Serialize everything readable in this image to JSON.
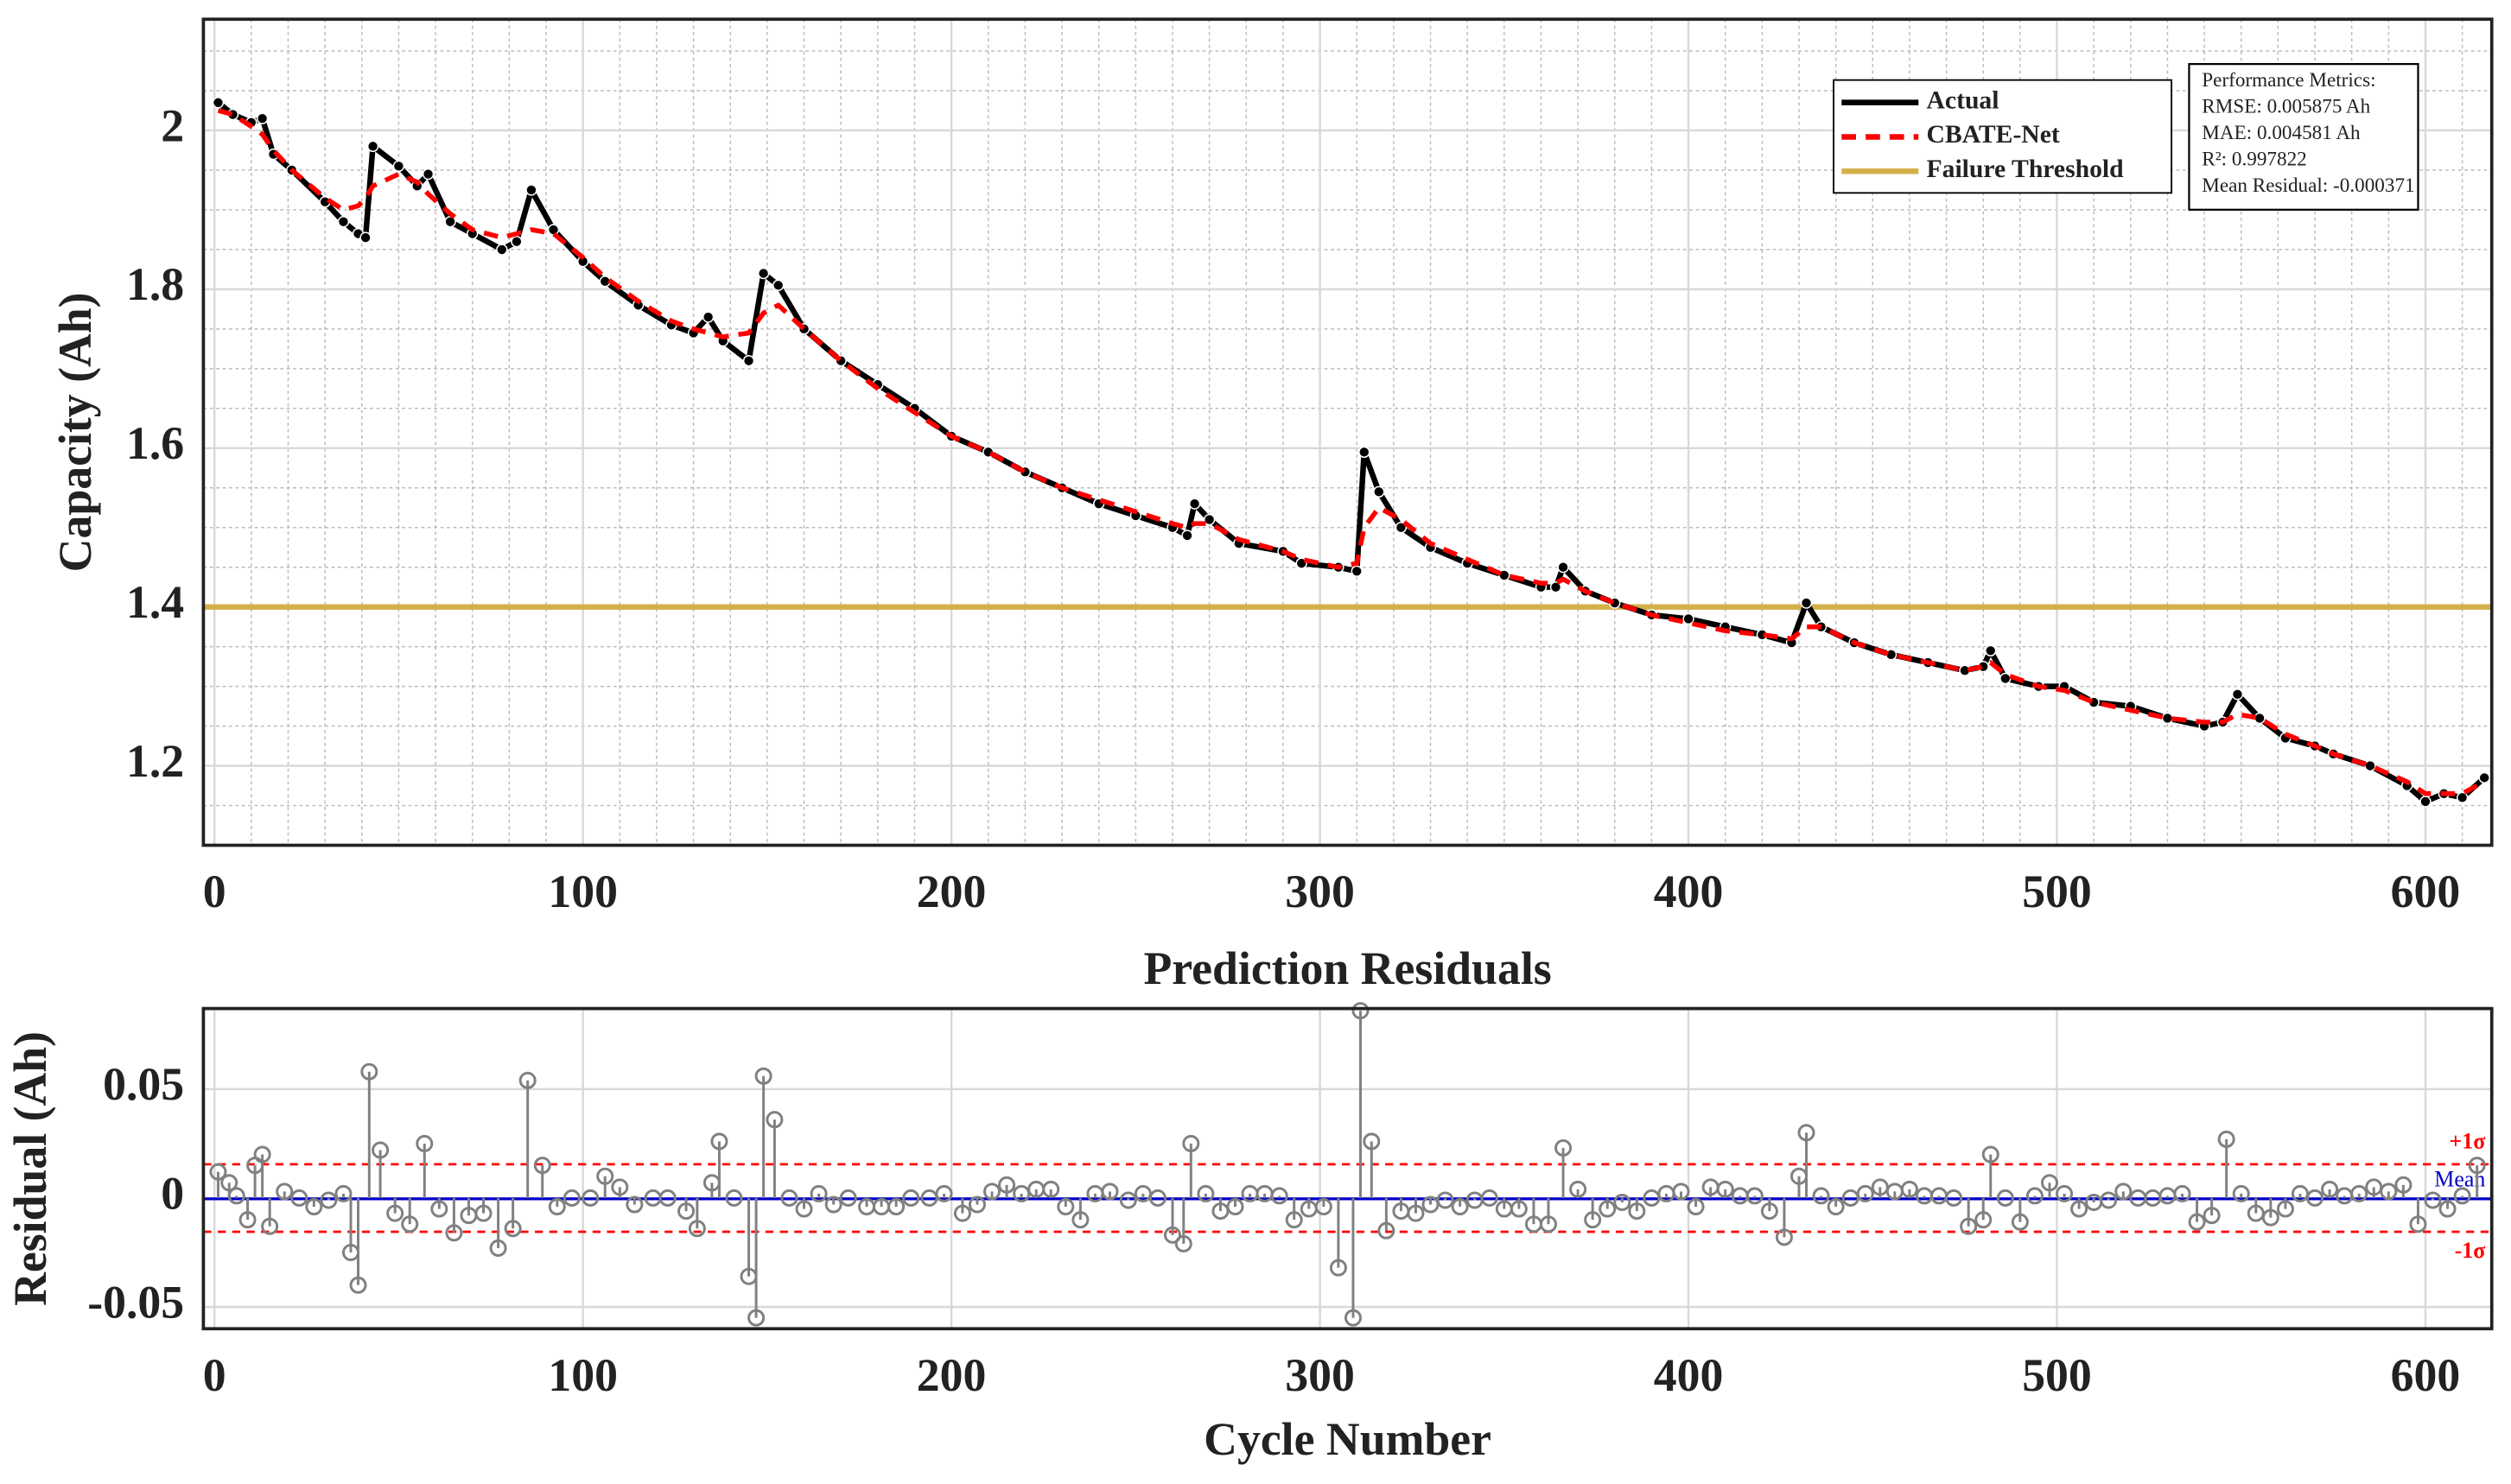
{
  "chart_data": [
    {
      "type": "line",
      "ylabel": "Capacity (Ah)",
      "xlim": [
        -3,
        618
      ],
      "ylim": [
        1.1,
        2.14
      ],
      "xticks": [
        0,
        100,
        200,
        300,
        400,
        500,
        600
      ],
      "yticks": [
        1.2,
        1.4,
        1.6,
        1.8,
        2
      ],
      "xminorticks": [
        10,
        20,
        30,
        40,
        50,
        60,
        70,
        80,
        90,
        110,
        120,
        130,
        140,
        150,
        160,
        170,
        180,
        190,
        210,
        220,
        230,
        240,
        250,
        260,
        270,
        280,
        290,
        310,
        320,
        330,
        340,
        350,
        360,
        370,
        380,
        390,
        410,
        420,
        430,
        440,
        450,
        460,
        470,
        480,
        490,
        510,
        520,
        530,
        540,
        550,
        560,
        570,
        580,
        590,
        610
      ],
      "yminorticks": [
        1.15,
        1.25,
        1.3,
        1.35,
        1.45,
        1.5,
        1.55,
        1.65,
        1.7,
        1.75,
        1.85,
        1.9,
        1.95,
        2.05,
        2.1
      ],
      "grid": true,
      "minor_grid": true,
      "legend": "upper right",
      "x": [
        1,
        5,
        10,
        13,
        16,
        21,
        30,
        35,
        39,
        41,
        43,
        50,
        55,
        58,
        64,
        70,
        78,
        82,
        86,
        92,
        100,
        106,
        115,
        124,
        130,
        134,
        138,
        145,
        149,
        153,
        160,
        170,
        180,
        190,
        200,
        210,
        220,
        230,
        240,
        250,
        260,
        264,
        266,
        270,
        278,
        290,
        295,
        305,
        310,
        312,
        316,
        322,
        330,
        340,
        350,
        360,
        364,
        366,
        372,
        380,
        390,
        400,
        410,
        420,
        428,
        432,
        436,
        445,
        455,
        465,
        475,
        480,
        482,
        486,
        495,
        502,
        510,
        520,
        530,
        540,
        545,
        549,
        555,
        562,
        570,
        575,
        585,
        595,
        600,
        605,
        610,
        616
      ],
      "series": [
        {
          "name": "Actual",
          "color": "#000000",
          "style": "solid",
          "markers": true,
          "values": [
            2.035,
            2.02,
            2.01,
            2.015,
            1.97,
            1.95,
            1.91,
            1.885,
            1.87,
            1.865,
            1.98,
            1.955,
            1.93,
            1.945,
            1.885,
            1.87,
            1.85,
            1.86,
            1.925,
            1.875,
            1.835,
            1.81,
            1.78,
            1.755,
            1.745,
            1.765,
            1.735,
            1.71,
            1.82,
            1.805,
            1.75,
            1.71,
            1.68,
            1.65,
            1.615,
            1.595,
            1.57,
            1.55,
            1.53,
            1.515,
            1.5,
            1.49,
            1.53,
            1.51,
            1.48,
            1.47,
            1.455,
            1.45,
            1.445,
            1.595,
            1.545,
            1.5,
            1.475,
            1.455,
            1.44,
            1.425,
            1.425,
            1.45,
            1.42,
            1.405,
            1.39,
            1.385,
            1.375,
            1.365,
            1.355,
            1.405,
            1.375,
            1.355,
            1.34,
            1.33,
            1.32,
            1.325,
            1.345,
            1.31,
            1.3,
            1.3,
            1.28,
            1.275,
            1.26,
            1.25,
            1.255,
            1.29,
            1.26,
            1.235,
            1.225,
            1.215,
            1.2,
            1.175,
            1.155,
            1.165,
            1.16,
            1.185
          ]
        },
        {
          "name": "CBATE-Net",
          "color": "#ff0000",
          "style": "dashed",
          "markers": false,
          "values": [
            2.025,
            2.02,
            2.005,
            1.995,
            1.975,
            1.95,
            1.915,
            1.9,
            1.905,
            1.915,
            1.93,
            1.945,
            1.935,
            1.92,
            1.895,
            1.875,
            1.865,
            1.87,
            1.875,
            1.87,
            1.84,
            1.815,
            1.785,
            1.76,
            1.75,
            1.745,
            1.74,
            1.745,
            1.77,
            1.78,
            1.75,
            1.71,
            1.675,
            1.645,
            1.615,
            1.595,
            1.57,
            1.55,
            1.535,
            1.52,
            1.505,
            1.5,
            1.505,
            1.505,
            1.485,
            1.47,
            1.46,
            1.45,
            1.455,
            1.5,
            1.525,
            1.51,
            1.48,
            1.46,
            1.44,
            1.43,
            1.43,
            1.435,
            1.42,
            1.405,
            1.39,
            1.38,
            1.37,
            1.365,
            1.36,
            1.375,
            1.375,
            1.355,
            1.34,
            1.33,
            1.32,
            1.325,
            1.33,
            1.315,
            1.3,
            1.295,
            1.28,
            1.27,
            1.26,
            1.255,
            1.255,
            1.265,
            1.26,
            1.24,
            1.225,
            1.215,
            1.2,
            1.18,
            1.165,
            1.165,
            1.165,
            1.18
          ]
        }
      ],
      "threshold": {
        "name": "Failure Threshold",
        "value": 1.4,
        "color": "#d4b04a"
      },
      "annotation_box": [
        "Performance Metrics:",
        "RMSE: 0.005875 Ah",
        "MAE: 0.004581 Ah",
        "R²: 0.997822",
        "Mean Residual: -0.000371"
      ]
    },
    {
      "type": "stem",
      "title": "Prediction Residuals",
      "xlabel": "Cycle Number",
      "ylabel": "Residual (Ah)",
      "xlim": [
        -3,
        618
      ],
      "ylim": [
        -0.06,
        0.087
      ],
      "xticks": [
        0,
        100,
        200,
        300,
        400,
        500,
        600
      ],
      "yticks": [
        -0.05,
        0,
        0.05
      ],
      "grid": true,
      "color": "#808080",
      "x": [
        1,
        4,
        6,
        9,
        11,
        13,
        15,
        19,
        23,
        27,
        31,
        35,
        37,
        39,
        42,
        45,
        49,
        53,
        57,
        61,
        65,
        69,
        73,
        77,
        81,
        85,
        89,
        93,
        97,
        102,
        106,
        110,
        114,
        119,
        123,
        128,
        131,
        135,
        137,
        141,
        145,
        147,
        149,
        152,
        156,
        160,
        164,
        168,
        172,
        177,
        181,
        185,
        189,
        194,
        198,
        203,
        207,
        211,
        215,
        219,
        223,
        227,
        231,
        235,
        239,
        243,
        248,
        252,
        256,
        260,
        263,
        265,
        269,
        273,
        277,
        281,
        285,
        289,
        293,
        297,
        301,
        305,
        309,
        311,
        314,
        318,
        322,
        326,
        330,
        334,
        338,
        342,
        346,
        350,
        354,
        358,
        362,
        366,
        370,
        374,
        378,
        382,
        386,
        390,
        394,
        398,
        402,
        406,
        410,
        414,
        418,
        422,
        426,
        430,
        432,
        436,
        440,
        444,
        448,
        452,
        456,
        460,
        464,
        468,
        472,
        476,
        480,
        482,
        486,
        490,
        494,
        498,
        502,
        506,
        510,
        514,
        518,
        522,
        526,
        530,
        534,
        538,
        542,
        546,
        550,
        554,
        558,
        562,
        566,
        570,
        574,
        578,
        582,
        586,
        590,
        594,
        598,
        602,
        606,
        610,
        614
      ],
      "values": [
        0.012,
        0.007,
        0.001,
        -0.01,
        0.015,
        0.02,
        -0.013,
        0.003,
        0,
        -0.004,
        -0.001,
        0.002,
        -0.025,
        -0.04,
        0.058,
        0.022,
        -0.007,
        -0.012,
        0.025,
        -0.005,
        -0.016,
        -0.008,
        -0.007,
        -0.023,
        -0.014,
        0.054,
        0.015,
        -0.004,
        0,
        0,
        0.01,
        0.005,
        -0.003,
        0,
        0,
        -0.006,
        -0.014,
        0.007,
        0.026,
        0,
        -0.036,
        -0.055,
        0.056,
        0.036,
        0,
        -0.005,
        0.002,
        -0.003,
        0,
        -0.004,
        -0.004,
        -0.004,
        0,
        0,
        0.002,
        -0.007,
        -0.003,
        0.003,
        0.006,
        0.002,
        0.004,
        0.004,
        -0.004,
        -0.01,
        0.002,
        0.003,
        -0.001,
        0.002,
        0,
        -0.017,
        -0.021,
        0.025,
        0.002,
        -0.006,
        -0.004,
        0.002,
        0.002,
        0.001,
        -0.01,
        -0.005,
        -0.004,
        -0.032,
        -0.055,
        0.086,
        0.026,
        -0.015,
        -0.006,
        -0.007,
        -0.003,
        -0.001,
        -0.004,
        -0.001,
        0,
        -0.005,
        -0.005,
        -0.012,
        -0.012,
        0.023,
        0.004,
        -0.01,
        -0.005,
        -0.002,
        -0.006,
        0,
        0.002,
        0.003,
        -0.004,
        0.005,
        0.004,
        0.001,
        0.001,
        -0.006,
        -0.018,
        0.01,
        0.03,
        0.001,
        -0.004,
        0,
        0.002,
        0.005,
        0.003,
        0.004,
        0.001,
        0.001,
        0,
        -0.013,
        -0.01,
        0.02,
        0,
        -0.011,
        0.001,
        0.007,
        0.002,
        -0.005,
        -0.002,
        -0.001,
        0.003,
        0,
        0,
        0.001,
        0.002,
        -0.011,
        -0.008,
        0.027,
        0.002,
        -0.007,
        -0.009,
        -0.005,
        0.002,
        0,
        0.004,
        0.001,
        0.002,
        0.005,
        0.003,
        0.006,
        -0.012,
        -0.001,
        -0.005,
        0.001,
        0.015
      ],
      "reference_lines": [
        {
          "label": "+1σ",
          "value": 0.0155,
          "color": "#ff0000",
          "style": "dashed"
        },
        {
          "label": "Mean",
          "value": -0.000371,
          "color": "#0000cc",
          "style": "solid"
        },
        {
          "label": "-1σ",
          "value": -0.0155,
          "color": "#ff0000",
          "style": "dashed"
        }
      ]
    }
  ]
}
